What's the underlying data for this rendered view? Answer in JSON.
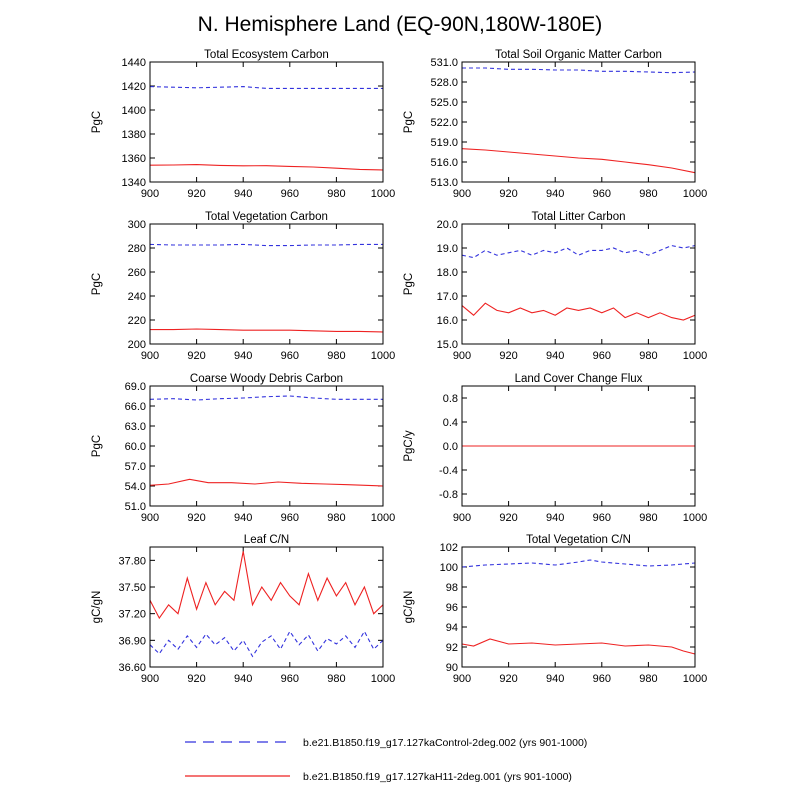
{
  "figure": {
    "title": "N. Hemisphere Land (EQ-90N,180W-180E)",
    "legend": [
      {
        "label": "b.e21.B1850.f19_g17.127kaControl-2deg.002 (yrs 901-1000)",
        "color": "#3333dd",
        "dash": true
      },
      {
        "label": "b.e21.B1850.f19_g17.127kaH11-2deg.001 (yrs 901-1000)",
        "color": "#ee2222",
        "dash": false
      }
    ]
  },
  "chart_data": [
    {
      "type": "line",
      "title": "Total Ecosystem Carbon",
      "ylabel": "PgC",
      "xlim": [
        900,
        1000
      ],
      "ylim": [
        1340,
        1440
      ],
      "xticks": [
        900,
        920,
        940,
        960,
        980,
        1000
      ],
      "yticks": [
        1340,
        1360,
        1380,
        1400,
        1420,
        1440
      ],
      "ytick_labels": [
        "1340",
        "1360",
        "1380",
        "1400",
        "1420",
        "1440"
      ],
      "series": [
        {
          "name": "Control",
          "color": "#3333dd",
          "dash": true,
          "x": [
            900,
            910,
            920,
            930,
            940,
            950,
            960,
            970,
            980,
            990,
            1000
          ],
          "y": [
            1419.5,
            1419,
            1418.5,
            1419,
            1419.5,
            1418,
            1418,
            1418,
            1418,
            1418,
            1418
          ]
        },
        {
          "name": "H11",
          "color": "#ee2222",
          "dash": false,
          "x": [
            900,
            910,
            920,
            930,
            940,
            950,
            960,
            970,
            980,
            990,
            1000
          ],
          "y": [
            1354,
            1354.2,
            1354.5,
            1353.8,
            1353.5,
            1353.6,
            1353,
            1352.5,
            1351.5,
            1350.5,
            1350
          ]
        }
      ]
    },
    {
      "type": "line",
      "title": "Total Soil Organic Matter Carbon",
      "ylabel": "PgC",
      "xlim": [
        900,
        1000
      ],
      "ylim": [
        513,
        531
      ],
      "xticks": [
        900,
        920,
        940,
        960,
        980,
        1000
      ],
      "yticks": [
        513,
        516,
        519,
        522,
        525,
        528,
        531
      ],
      "ytick_labels": [
        "513.0",
        "516.0",
        "519.0",
        "522.0",
        "525.0",
        "528.0",
        "531.0"
      ],
      "series": [
        {
          "name": "Control",
          "color": "#3333dd",
          "dash": true,
          "x": [
            900,
            910,
            920,
            930,
            940,
            950,
            960,
            970,
            980,
            990,
            1000
          ],
          "y": [
            530.1,
            530.1,
            529.9,
            529.9,
            529.8,
            529.8,
            529.6,
            529.6,
            529.5,
            529.4,
            529.5
          ]
        },
        {
          "name": "H11",
          "color": "#ee2222",
          "dash": false,
          "x": [
            900,
            910,
            920,
            930,
            940,
            950,
            960,
            970,
            980,
            990,
            1000
          ],
          "y": [
            518,
            517.8,
            517.5,
            517.2,
            516.9,
            516.6,
            516.4,
            516,
            515.6,
            515.1,
            514.4
          ]
        }
      ]
    },
    {
      "type": "line",
      "title": "Total Vegetation Carbon",
      "ylabel": "PgC",
      "xlim": [
        900,
        1000
      ],
      "ylim": [
        200,
        300
      ],
      "xticks": [
        900,
        920,
        940,
        960,
        980,
        1000
      ],
      "yticks": [
        200,
        220,
        240,
        260,
        280,
        300
      ],
      "ytick_labels": [
        "200",
        "220",
        "240",
        "260",
        "280",
        "300"
      ],
      "series": [
        {
          "name": "Control",
          "color": "#3333dd",
          "dash": true,
          "x": [
            900,
            910,
            920,
            930,
            940,
            950,
            960,
            970,
            980,
            990,
            1000
          ],
          "y": [
            283,
            282.5,
            282.5,
            282.5,
            283,
            282,
            282,
            282.5,
            282.5,
            283,
            283
          ]
        },
        {
          "name": "H11",
          "color": "#ee2222",
          "dash": false,
          "x": [
            900,
            910,
            920,
            930,
            940,
            950,
            960,
            970,
            980,
            990,
            1000
          ],
          "y": [
            212,
            212,
            212.5,
            212,
            211.5,
            211.5,
            211.5,
            211,
            210.5,
            210.5,
            210
          ]
        }
      ]
    },
    {
      "type": "line",
      "title": "Total Litter Carbon",
      "ylabel": "PgC",
      "xlim": [
        900,
        1000
      ],
      "ylim": [
        15,
        20
      ],
      "xticks": [
        900,
        920,
        940,
        960,
        980,
        1000
      ],
      "yticks": [
        15,
        16,
        17,
        18,
        19,
        20
      ],
      "ytick_labels": [
        "15.0",
        "16.0",
        "17.0",
        "18.0",
        "19.0",
        "20.0"
      ],
      "series": [
        {
          "name": "Control",
          "color": "#3333dd",
          "dash": true,
          "x": [
            900,
            905,
            910,
            915,
            920,
            925,
            930,
            935,
            940,
            945,
            950,
            955,
            960,
            965,
            970,
            975,
            980,
            985,
            990,
            995,
            1000
          ],
          "y": [
            18.7,
            18.6,
            18.9,
            18.7,
            18.8,
            18.9,
            18.7,
            18.9,
            18.8,
            19,
            18.7,
            18.9,
            18.9,
            19,
            18.8,
            18.9,
            18.7,
            18.9,
            19.1,
            19,
            19.1
          ]
        },
        {
          "name": "H11",
          "color": "#ee2222",
          "dash": false,
          "x": [
            900,
            905,
            910,
            915,
            920,
            925,
            930,
            935,
            940,
            945,
            950,
            955,
            960,
            965,
            970,
            975,
            980,
            985,
            990,
            995,
            1000
          ],
          "y": [
            16.6,
            16.2,
            16.7,
            16.4,
            16.3,
            16.5,
            16.3,
            16.4,
            16.2,
            16.5,
            16.4,
            16.5,
            16.3,
            16.5,
            16.1,
            16.3,
            16.1,
            16.3,
            16.1,
            16,
            16.2
          ]
        }
      ]
    },
    {
      "type": "line",
      "title": "Coarse Woody Debris Carbon",
      "ylabel": "PgC",
      "xlim": [
        900,
        1000
      ],
      "ylim": [
        51,
        69
      ],
      "xticks": [
        900,
        920,
        940,
        960,
        980,
        1000
      ],
      "yticks": [
        51,
        54,
        57,
        60,
        63,
        66,
        69
      ],
      "ytick_labels": [
        "51.0",
        "54.0",
        "57.0",
        "60.0",
        "63.0",
        "66.0",
        "69.0"
      ],
      "series": [
        {
          "name": "Control",
          "color": "#3333dd",
          "dash": true,
          "x": [
            900,
            910,
            920,
            930,
            940,
            950,
            960,
            970,
            980,
            990,
            1000
          ],
          "y": [
            67,
            67.1,
            66.9,
            67.1,
            67.2,
            67.4,
            67.5,
            67.2,
            67,
            67,
            67
          ]
        },
        {
          "name": "H11",
          "color": "#ee2222",
          "dash": false,
          "x": [
            900,
            908,
            917,
            925,
            935,
            945,
            955,
            965,
            975,
            985,
            1000
          ],
          "y": [
            54.1,
            54.3,
            55,
            54.5,
            54.5,
            54.3,
            54.6,
            54.4,
            54.3,
            54.2,
            54
          ]
        }
      ]
    },
    {
      "type": "line",
      "title": "Land Cover Change Flux",
      "ylabel": "PgC/y",
      "xlim": [
        900,
        1000
      ],
      "ylim": [
        -1,
        1
      ],
      "xticks": [
        900,
        920,
        940,
        960,
        980,
        1000
      ],
      "yticks": [
        -0.8,
        -0.4,
        0,
        0.4,
        0.8
      ],
      "ytick_labels": [
        "-0.8",
        "-0.4",
        "0.0",
        "0.4",
        "0.8"
      ],
      "series": [
        {
          "name": "Control",
          "color": "#3333dd",
          "dash": true,
          "x": [
            900,
            1000
          ],
          "y": [
            0,
            0
          ]
        },
        {
          "name": "H11",
          "color": "#ee2222",
          "dash": false,
          "x": [
            900,
            1000
          ],
          "y": [
            0,
            0
          ]
        }
      ]
    },
    {
      "type": "line",
      "title": "Leaf C/N",
      "ylabel": "gC/gN",
      "xlim": [
        900,
        1000
      ],
      "ylim": [
        36.6,
        37.95
      ],
      "xticks": [
        900,
        920,
        940,
        960,
        980,
        1000
      ],
      "yticks": [
        36.6,
        36.9,
        37.2,
        37.5,
        37.8
      ],
      "ytick_labels": [
        "36.60",
        "36.90",
        "37.20",
        "37.50",
        "37.80"
      ],
      "series": [
        {
          "name": "Control",
          "color": "#3333dd",
          "dash": true,
          "x": [
            900,
            904,
            908,
            912,
            916,
            920,
            924,
            928,
            932,
            936,
            940,
            944,
            948,
            952,
            956,
            960,
            964,
            968,
            972,
            976,
            980,
            984,
            988,
            992,
            996,
            1000
          ],
          "y": [
            36.85,
            36.75,
            36.9,
            36.8,
            36.95,
            36.82,
            36.97,
            36.85,
            36.93,
            36.78,
            36.9,
            36.72,
            36.88,
            36.95,
            36.8,
            37.0,
            36.85,
            36.96,
            36.78,
            36.92,
            36.86,
            36.95,
            36.82,
            37.0,
            36.8,
            36.9
          ]
        },
        {
          "name": "H11",
          "color": "#ee2222",
          "dash": false,
          "x": [
            900,
            904,
            908,
            912,
            916,
            920,
            924,
            928,
            932,
            936,
            940,
            944,
            948,
            952,
            956,
            960,
            964,
            968,
            972,
            976,
            980,
            984,
            988,
            992,
            996,
            1000
          ],
          "y": [
            37.35,
            37.15,
            37.3,
            37.2,
            37.6,
            37.25,
            37.55,
            37.3,
            37.45,
            37.35,
            37.9,
            37.3,
            37.5,
            37.35,
            37.55,
            37.4,
            37.3,
            37.65,
            37.35,
            37.6,
            37.4,
            37.55,
            37.3,
            37.5,
            37.2,
            37.3
          ]
        }
      ]
    },
    {
      "type": "line",
      "title": "Total Vegetation C/N",
      "ylabel": "gC/gN",
      "xlim": [
        900,
        1000
      ],
      "ylim": [
        90,
        102
      ],
      "xticks": [
        900,
        920,
        940,
        960,
        980,
        1000
      ],
      "yticks": [
        90,
        92,
        94,
        96,
        98,
        100,
        102
      ],
      "ytick_labels": [
        "90",
        "92",
        "94",
        "96",
        "98",
        "100",
        "102"
      ],
      "series": [
        {
          "name": "Control",
          "color": "#3333dd",
          "dash": true,
          "x": [
            900,
            910,
            920,
            930,
            940,
            950,
            955,
            960,
            970,
            980,
            990,
            1000
          ],
          "y": [
            100,
            100.2,
            100.3,
            100.4,
            100.2,
            100.5,
            100.7,
            100.5,
            100.3,
            100.1,
            100.2,
            100.4
          ]
        },
        {
          "name": "H11",
          "color": "#ee2222",
          "dash": false,
          "x": [
            900,
            905,
            912,
            920,
            930,
            940,
            950,
            960,
            970,
            980,
            990,
            995,
            1000
          ],
          "y": [
            92.3,
            92.1,
            92.8,
            92.3,
            92.4,
            92.2,
            92.3,
            92.4,
            92.1,
            92.2,
            92,
            91.6,
            91.3
          ]
        }
      ]
    }
  ]
}
